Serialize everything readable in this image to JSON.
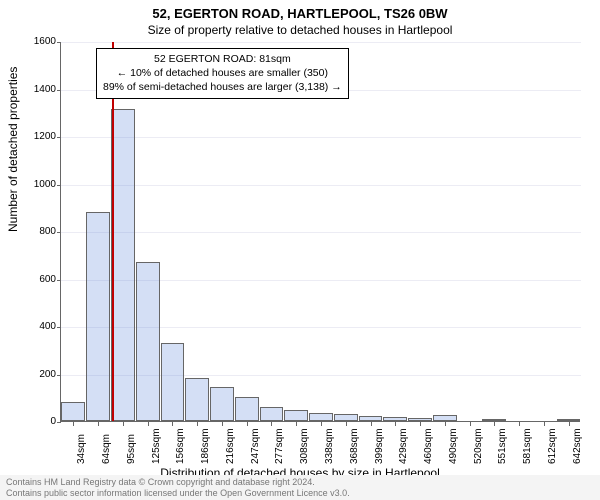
{
  "title_main": "52, EGERTON ROAD, HARTLEPOOL, TS26 0BW",
  "title_sub": "Size of property relative to detached houses in Hartlepool",
  "ylabel": "Number of detached properties",
  "xlabel": "Distribution of detached houses by size in Hartlepool",
  "chart": {
    "type": "histogram",
    "background_color": "#ffffff",
    "grid_color": "#ececf4",
    "axis_color": "#666666",
    "bar_fill": "rgba(100,140,220,0.28)",
    "bar_border": "#666666",
    "reference_line_color": "#c00000",
    "reference_value_sqm": 81,
    "ylim": [
      0,
      1600
    ],
    "ytick_step": 200,
    "x_categories": [
      "34sqm",
      "64sqm",
      "95sqm",
      "125sqm",
      "156sqm",
      "186sqm",
      "216sqm",
      "247sqm",
      "277sqm",
      "308sqm",
      "338sqm",
      "368sqm",
      "399sqm",
      "429sqm",
      "460sqm",
      "490sqm",
      "520sqm",
      "551sqm",
      "581sqm",
      "612sqm",
      "642sqm"
    ],
    "values": [
      80,
      880,
      1315,
      670,
      330,
      180,
      145,
      100,
      60,
      45,
      35,
      30,
      20,
      15,
      12,
      25,
      0,
      8,
      0,
      0,
      10
    ],
    "title_fontsize": 13,
    "subtitle_fontsize": 12,
    "label_fontsize": 12,
    "tick_fontsize": 10,
    "annotation_fontsize": 10.5
  },
  "annotation": {
    "line1": "52 EGERTON ROAD: 81sqm",
    "line2": "← 10% of detached houses are smaller (350)",
    "line3": "89% of semi-detached houses are larger (3,138) →"
  },
  "footer": {
    "line1": "Contains HM Land Registry data © Crown copyright and database right 2024.",
    "line2": "Contains public sector information licensed under the Open Government Licence v3.0."
  }
}
